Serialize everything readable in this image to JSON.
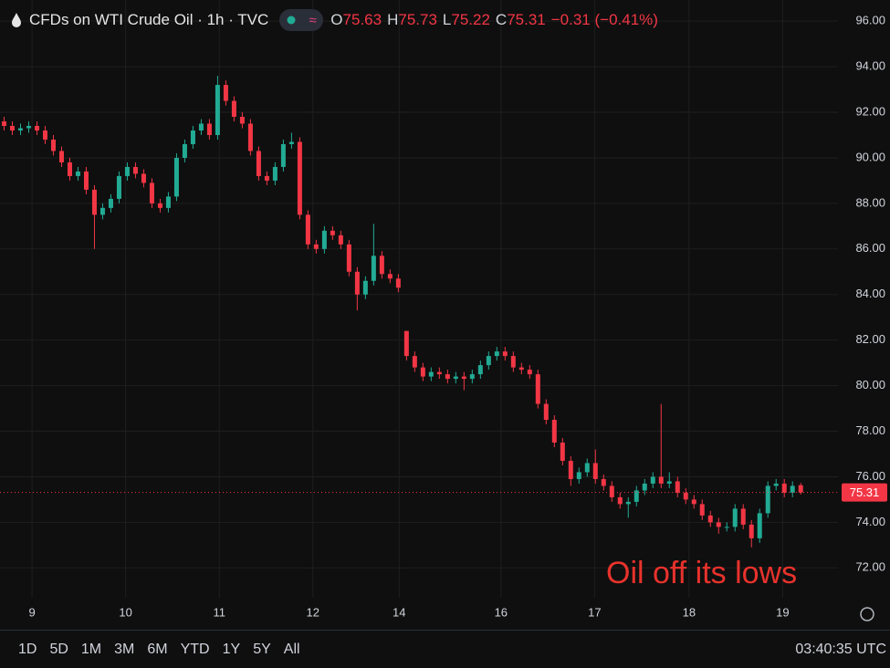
{
  "chart_data": {
    "type": "candlestick",
    "title": "CFDs on WTI Crude Oil · 1h · TVC",
    "ohlc_labels": {
      "open": "O",
      "high": "H",
      "low": "L",
      "close": "C"
    },
    "change": "−0.31 (−0.41%)",
    "annotation": "Oil off its lows",
    "up_color": "#22ab94",
    "down_color": "#f23645",
    "grid": true,
    "last_price_line": true,
    "x": [
      0,
      1,
      2,
      3,
      4,
      5,
      6,
      7,
      8,
      9,
      10,
      11,
      12,
      13,
      14,
      15,
      16,
      17,
      18,
      19,
      20,
      21,
      22,
      23,
      24,
      25,
      26,
      27,
      28,
      29,
      30,
      31,
      32,
      33,
      34,
      35,
      36,
      37,
      38,
      39,
      40,
      41,
      42,
      43,
      44,
      45,
      46,
      47,
      48,
      49,
      50,
      51,
      52,
      53,
      54,
      55,
      56,
      57,
      58,
      59,
      60,
      61,
      62,
      63,
      64,
      65,
      66,
      67,
      68,
      69,
      70,
      71,
      72,
      73,
      74,
      75,
      76,
      77,
      78,
      79,
      80,
      81,
      82,
      83,
      84,
      85,
      86,
      87,
      88,
      89,
      90,
      91,
      92,
      93,
      94,
      95,
      96,
      97
    ],
    "open": [
      91.6,
      91.4,
      91.2,
      91.3,
      91.4,
      91.2,
      90.8,
      90.3,
      89.8,
      89.2,
      89.4,
      88.6,
      87.5,
      87.8,
      88.2,
      89.2,
      89.6,
      89.3,
      88.9,
      88.0,
      87.8,
      88.3,
      90.0,
      90.6,
      91.2,
      91.5,
      91.0,
      93.2,
      92.5,
      91.8,
      91.5,
      90.3,
      89.2,
      89.0,
      89.6,
      90.6,
      90.7,
      87.5,
      86.2,
      86.0,
      86.8,
      86.6,
      86.2,
      85.0,
      84.0,
      84.6,
      85.7,
      84.9,
      84.7,
      82.4,
      81.3,
      80.8,
      80.4,
      80.6,
      80.5,
      80.3,
      80.4,
      80.3,
      80.5,
      80.9,
      81.3,
      81.5,
      81.3,
      80.8,
      80.7,
      80.5,
      79.2,
      78.5,
      77.5,
      76.7,
      75.9,
      76.2,
      76.6,
      75.9,
      75.6,
      75.1,
      74.8,
      74.9,
      75.4,
      75.7,
      76.0,
      75.7,
      75.8,
      75.3,
      75.0,
      74.8,
      74.3,
      74.0,
      73.8,
      73.8,
      74.6,
      73.9,
      73.3,
      74.4,
      75.6,
      75.7,
      75.3,
      75.63
    ],
    "high": [
      91.8,
      91.6,
      91.5,
      91.6,
      91.6,
      91.4,
      91.0,
      90.5,
      90.0,
      89.6,
      89.6,
      88.8,
      88.0,
      88.4,
      89.4,
      89.8,
      89.8,
      89.5,
      89.1,
      88.2,
      88.5,
      90.2,
      90.8,
      91.4,
      91.7,
      91.7,
      93.6,
      93.4,
      92.7,
      92.0,
      91.7,
      90.5,
      89.4,
      89.8,
      90.8,
      91.1,
      90.9,
      87.7,
      86.4,
      87.0,
      87.0,
      86.8,
      86.4,
      85.2,
      84.8,
      87.1,
      85.9,
      85.1,
      84.9,
      82.4,
      81.5,
      81.0,
      80.8,
      80.8,
      80.7,
      80.6,
      80.6,
      80.7,
      81.1,
      81.5,
      81.7,
      81.7,
      81.5,
      81.0,
      80.9,
      80.7,
      79.4,
      78.7,
      77.7,
      76.9,
      76.4,
      76.8,
      77.2,
      76.1,
      75.8,
      75.3,
      75.1,
      75.6,
      75.9,
      76.2,
      79.2,
      76.2,
      76.0,
      75.5,
      75.2,
      75.0,
      74.5,
      74.2,
      74.0,
      74.8,
      74.8,
      74.1,
      74.6,
      75.8,
      75.9,
      75.9,
      75.8,
      75.73
    ],
    "low": [
      91.2,
      91.0,
      91.0,
      91.1,
      91.0,
      90.6,
      90.1,
      89.6,
      89.0,
      89.0,
      88.4,
      86.0,
      87.3,
      87.6,
      88.0,
      89.0,
      89.1,
      88.7,
      87.8,
      87.6,
      87.6,
      88.1,
      89.8,
      90.4,
      91.0,
      90.8,
      90.8,
      92.3,
      91.6,
      91.3,
      90.1,
      89.0,
      88.8,
      88.8,
      89.4,
      90.4,
      87.3,
      86.0,
      85.8,
      85.8,
      86.4,
      86.0,
      84.8,
      83.3,
      83.8,
      84.4,
      84.7,
      84.5,
      84.1,
      81.1,
      80.6,
      80.2,
      80.2,
      80.3,
      80.1,
      80.1,
      79.8,
      80.1,
      80.3,
      80.7,
      81.1,
      81.1,
      80.6,
      80.5,
      80.3,
      79.0,
      78.3,
      77.3,
      76.5,
      75.6,
      75.7,
      76.0,
      75.7,
      75.4,
      74.9,
      74.6,
      74.2,
      74.7,
      75.2,
      75.5,
      75.5,
      75.5,
      75.1,
      74.8,
      74.6,
      74.1,
      73.8,
      73.5,
      73.6,
      73.6,
      73.7,
      72.9,
      73.1,
      74.2,
      75.4,
      75.1,
      75.1,
      75.22
    ],
    "close": [
      91.4,
      91.2,
      91.3,
      91.4,
      91.2,
      90.8,
      90.3,
      89.8,
      89.2,
      89.4,
      88.6,
      87.5,
      87.8,
      88.2,
      89.2,
      89.6,
      89.3,
      88.9,
      88.0,
      87.8,
      88.3,
      90.0,
      90.6,
      91.2,
      91.5,
      91.0,
      93.2,
      92.5,
      91.8,
      91.5,
      90.3,
      89.2,
      89.0,
      89.6,
      90.6,
      90.7,
      87.5,
      86.2,
      86.0,
      86.8,
      86.6,
      86.2,
      85.0,
      84.0,
      84.6,
      85.7,
      84.9,
      84.7,
      84.3,
      81.3,
      80.8,
      80.4,
      80.6,
      80.5,
      80.3,
      80.4,
      80.3,
      80.5,
      80.9,
      81.3,
      81.5,
      81.3,
      80.8,
      80.7,
      80.5,
      79.2,
      78.5,
      77.5,
      76.7,
      75.9,
      76.2,
      76.6,
      75.9,
      75.6,
      75.1,
      74.8,
      74.9,
      75.4,
      75.7,
      76.0,
      75.7,
      75.8,
      75.3,
      75.0,
      74.8,
      74.3,
      74.0,
      73.8,
      73.8,
      74.6,
      73.9,
      73.3,
      74.4,
      75.6,
      75.7,
      75.3,
      75.6,
      75.31
    ],
    "xlim": [
      -0.5,
      101.2
    ],
    "xticks": [
      {
        "value": 3.4,
        "label": "9"
      },
      {
        "value": 14.8,
        "label": "10"
      },
      {
        "value": 26.2,
        "label": "11"
      },
      {
        "value": 37.6,
        "label": "12"
      },
      {
        "value": 48.1,
        "label": "14"
      },
      {
        "value": 60.5,
        "label": "16"
      },
      {
        "value": 71.9,
        "label": "17"
      },
      {
        "value": 83.4,
        "label": "18"
      },
      {
        "value": 94.8,
        "label": "19"
      }
    ],
    "ylim": [
      71.5,
      96.3
    ],
    "yticks": [
      {
        "value": 72,
        "label": "72.00"
      },
      {
        "value": 74,
        "label": "74.00"
      },
      {
        "value": 76,
        "label": "76.00"
      },
      {
        "value": 78,
        "label": "78.00"
      },
      {
        "value": 80,
        "label": "80.00"
      },
      {
        "value": 82,
        "label": "82.00"
      },
      {
        "value": 84,
        "label": "84.00"
      },
      {
        "value": 86,
        "label": "86.00"
      },
      {
        "value": 88,
        "label": "88.00"
      },
      {
        "value": 90,
        "label": "90.00"
      },
      {
        "value": 92,
        "label": "92.00"
      },
      {
        "value": 94,
        "label": "94.00"
      },
      {
        "value": 96,
        "label": "96.00"
      }
    ]
  },
  "toolbar": {
    "ranges": [
      "1D",
      "5D",
      "1M",
      "3M",
      "6M",
      "YTD",
      "1Y",
      "5Y",
      "All"
    ],
    "clock": "03:40:35 UTC"
  }
}
